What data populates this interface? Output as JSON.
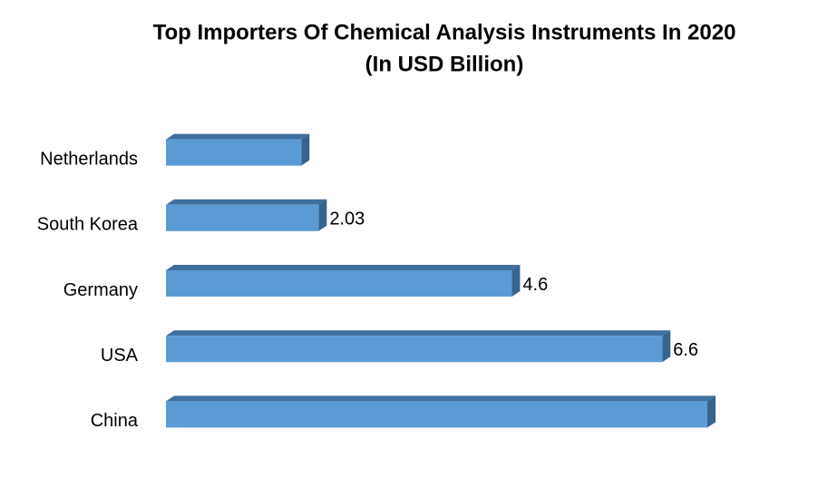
{
  "chart_data": {
    "type": "bar3d-horizontal",
    "title": [
      "Top Importers Of Chemical Analysis Instruments In 2020",
      "(In USD Billion)"
    ],
    "categories": [
      "Netherlands",
      "South Korea",
      "Germany",
      "USA",
      "China"
    ],
    "values": [
      1.8,
      2.03,
      4.6,
      6.6,
      7.2
    ],
    "value_labels": [
      null,
      "2.03",
      "4.6",
      "6.6",
      null
    ],
    "color": "#5b9bd5"
  }
}
